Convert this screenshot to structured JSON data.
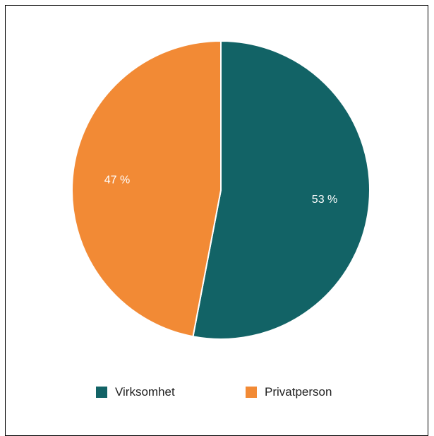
{
  "chart_data": {
    "type": "pie",
    "title": "",
    "slices": [
      {
        "label": "Virksomhet",
        "value": 53,
        "value_label": "53 %",
        "color": "#126366"
      },
      {
        "label": "Privatperson",
        "value": 47,
        "value_label": "47 %",
        "color": "#f28a35"
      }
    ],
    "legend_position": "bottom"
  }
}
